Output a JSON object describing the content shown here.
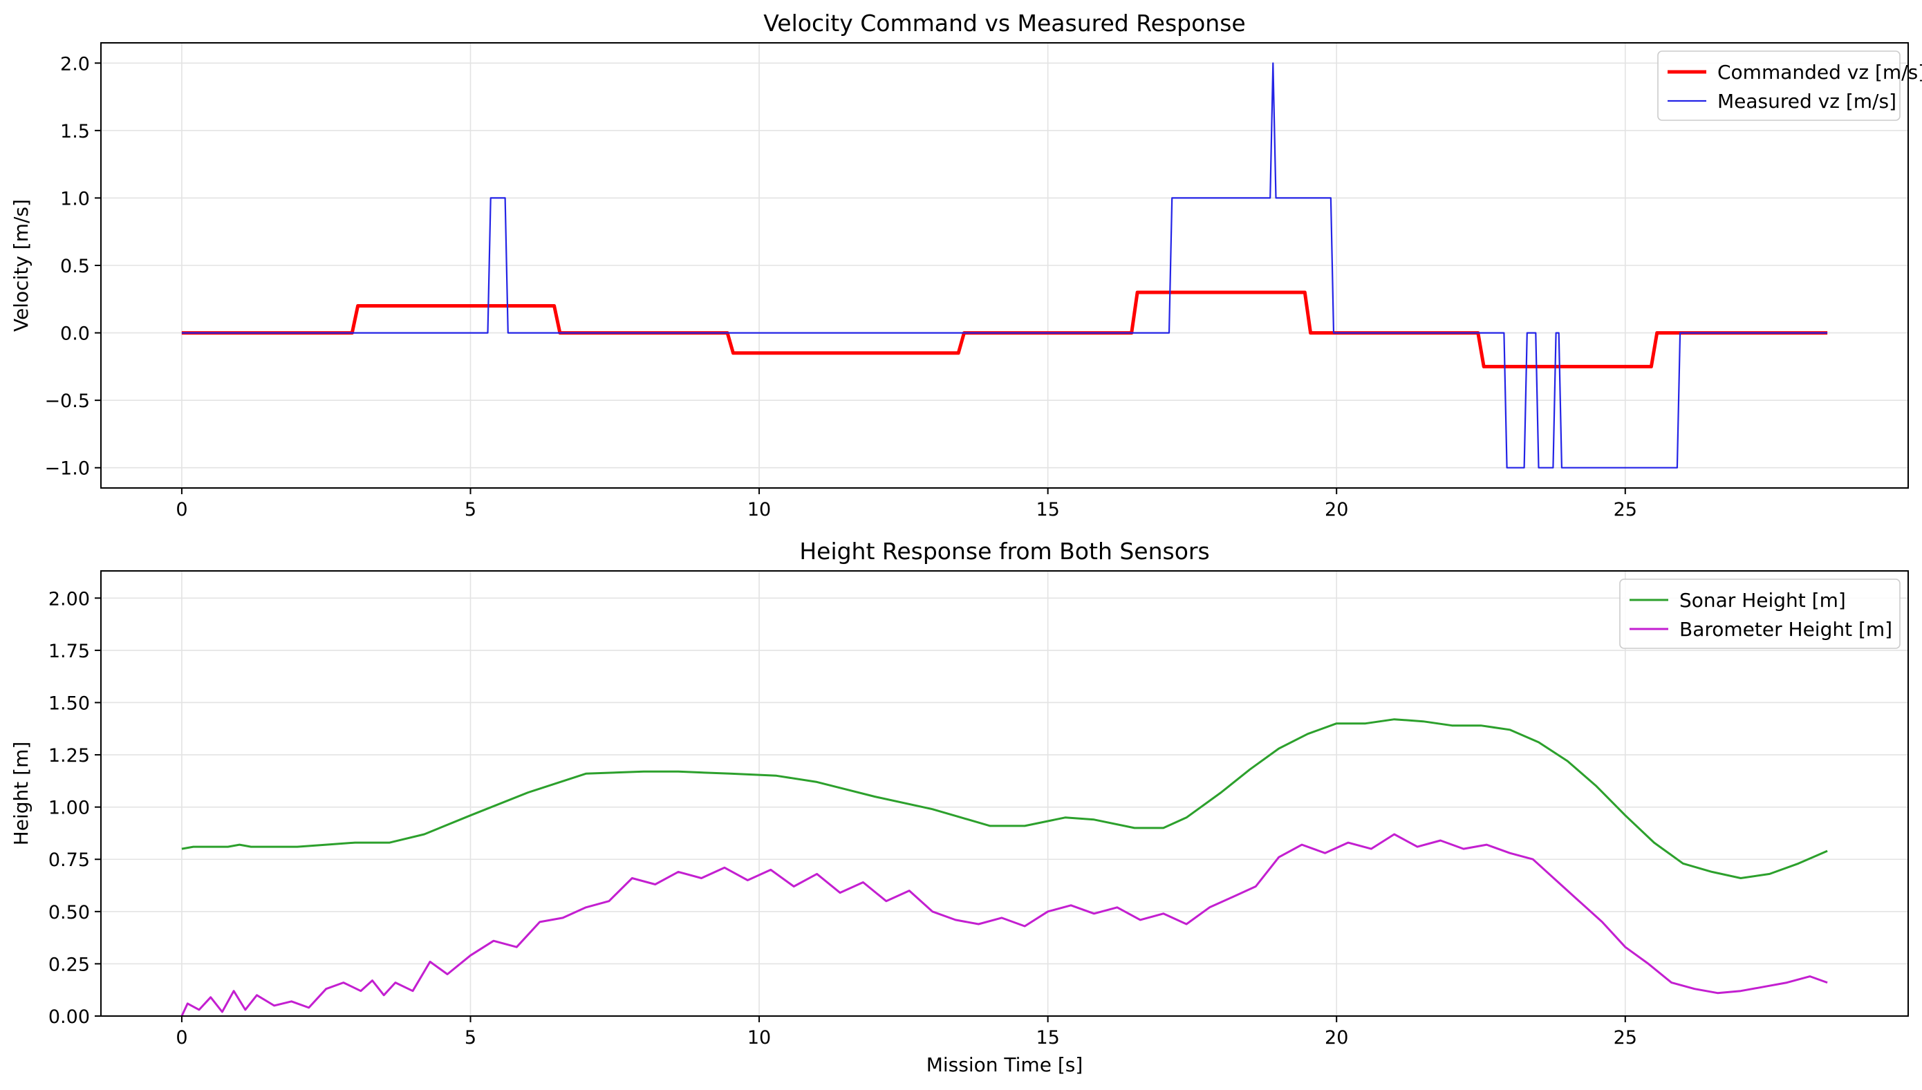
{
  "chart_data": [
    {
      "type": "line",
      "title": "Velocity Command vs Measured Response",
      "xlabel": "",
      "ylabel": "Velocity [m/s]",
      "xlim": [
        -1.4,
        29.9
      ],
      "ylim": [
        -1.15,
        2.15
      ],
      "xticks": [
        0,
        5,
        10,
        15,
        20,
        25
      ],
      "xtick_labels": [
        "0",
        "5",
        "10",
        "15",
        "20",
        "25"
      ],
      "yticks": [
        -1.0,
        -0.5,
        0.0,
        0.5,
        1.0,
        1.5,
        2.0
      ],
      "ytick_labels": [
        "−1.0",
        "−0.5",
        "0.0",
        "0.5",
        "1.0",
        "1.5",
        "2.0"
      ],
      "grid": true,
      "legend_position": "top-right",
      "series": [
        {
          "name": "Commanded vz [m/s]",
          "color": "#ff0000",
          "width": 5,
          "x": [
            0,
            2.95,
            3.05,
            6.45,
            6.55,
            9.45,
            9.55,
            13.45,
            13.55,
            16.45,
            16.55,
            19.45,
            19.55,
            22.45,
            22.55,
            25.45,
            25.55,
            28.5
          ],
          "y": [
            0,
            0,
            0.2,
            0.2,
            0,
            0,
            -0.15,
            -0.15,
            0,
            0,
            0.3,
            0.3,
            0,
            0,
            -0.25,
            -0.25,
            0,
            0
          ]
        },
        {
          "name": "Measured vz [m/s]",
          "color": "#2323e6",
          "width": 2.2,
          "x": [
            0,
            5.3,
            5.35,
            5.6,
            5.65,
            17.1,
            17.15,
            18.85,
            18.9,
            18.95,
            19.9,
            19.95,
            22.9,
            22.95,
            23.25,
            23.3,
            23.45,
            23.5,
            23.75,
            23.8,
            23.85,
            23.9,
            25.9,
            25.95,
            28.5
          ],
          "y": [
            0,
            0,
            1,
            1,
            0,
            0,
            1,
            1,
            2,
            1,
            1,
            0,
            0,
            -1,
            -1,
            0,
            0,
            -1,
            -1,
            0,
            0,
            -1,
            -1,
            0,
            0
          ]
        }
      ]
    },
    {
      "type": "line",
      "title": "Height Response from Both Sensors",
      "xlabel": "Mission Time [s]",
      "ylabel": "Height [m]",
      "xlim": [
        -1.4,
        29.9
      ],
      "ylim": [
        0,
        2.13
      ],
      "xticks": [
        0,
        5,
        10,
        15,
        20,
        25
      ],
      "xtick_labels": [
        "0",
        "5",
        "10",
        "15",
        "20",
        "25"
      ],
      "yticks": [
        0,
        0.25,
        0.5,
        0.75,
        1.0,
        1.25,
        1.5,
        1.75,
        2.0
      ],
      "ytick_labels": [
        "0.00",
        "0.25",
        "0.50",
        "0.75",
        "1.00",
        "1.25",
        "1.50",
        "1.75",
        "2.00"
      ],
      "grid": true,
      "legend_position": "top-right",
      "series": [
        {
          "name": "Sonar Height [m]",
          "color": "#2ca02c",
          "width": 3,
          "x": [
            0,
            0.2,
            0.8,
            1.0,
            1.2,
            2.0,
            2.5,
            3.0,
            3.6,
            4.2,
            5.0,
            6.0,
            7.0,
            8.0,
            8.6,
            9.5,
            10.3,
            11.0,
            12.0,
            13.0,
            13.5,
            14.0,
            14.6,
            15.3,
            15.8,
            16.5,
            17.0,
            17.4,
            18.0,
            18.5,
            19.0,
            19.5,
            20.0,
            20.5,
            21.0,
            21.5,
            22.0,
            22.5,
            23.0,
            23.5,
            24.0,
            24.5,
            25.0,
            25.5,
            26.0,
            26.5,
            27.0,
            27.5,
            28.0,
            28.5
          ],
          "y": [
            0.8,
            0.81,
            0.81,
            0.82,
            0.81,
            0.81,
            0.82,
            0.83,
            0.83,
            0.87,
            0.96,
            1.07,
            1.16,
            1.17,
            1.17,
            1.16,
            1.15,
            1.12,
            1.05,
            0.99,
            0.95,
            0.91,
            0.91,
            0.95,
            0.94,
            0.9,
            0.9,
            0.95,
            1.07,
            1.18,
            1.28,
            1.35,
            1.4,
            1.4,
            1.42,
            1.41,
            1.39,
            1.39,
            1.37,
            1.31,
            1.22,
            1.1,
            0.96,
            0.83,
            0.73,
            0.69,
            0.66,
            0.68,
            0.73,
            0.79
          ]
        },
        {
          "name": "Barometer Height [m]",
          "color": "#c31fd0",
          "width": 3,
          "x": [
            0,
            0.1,
            0.3,
            0.5,
            0.7,
            0.9,
            1.1,
            1.3,
            1.6,
            1.9,
            2.2,
            2.5,
            2.8,
            3.1,
            3.3,
            3.5,
            3.7,
            4.0,
            4.3,
            4.6,
            5.0,
            5.4,
            5.8,
            6.2,
            6.6,
            7.0,
            7.4,
            7.8,
            8.2,
            8.6,
            9.0,
            9.4,
            9.8,
            10.2,
            10.6,
            11.0,
            11.4,
            11.8,
            12.2,
            12.6,
            13.0,
            13.4,
            13.8,
            14.2,
            14.6,
            15.0,
            15.4,
            15.8,
            16.2,
            16.6,
            17.0,
            17.4,
            17.8,
            18.2,
            18.6,
            19.0,
            19.4,
            19.8,
            20.2,
            20.6,
            21.0,
            21.4,
            21.8,
            22.2,
            22.6,
            23.0,
            23.4,
            23.8,
            24.2,
            24.6,
            25.0,
            25.4,
            25.8,
            26.2,
            26.6,
            27.0,
            27.4,
            27.8,
            28.2,
            28.5
          ],
          "y": [
            0.0,
            0.06,
            0.03,
            0.09,
            0.02,
            0.12,
            0.03,
            0.1,
            0.05,
            0.07,
            0.04,
            0.13,
            0.16,
            0.12,
            0.17,
            0.1,
            0.16,
            0.12,
            0.26,
            0.2,
            0.29,
            0.36,
            0.33,
            0.45,
            0.47,
            0.52,
            0.55,
            0.66,
            0.63,
            0.69,
            0.66,
            0.71,
            0.65,
            0.7,
            0.62,
            0.68,
            0.59,
            0.64,
            0.55,
            0.6,
            0.5,
            0.46,
            0.44,
            0.47,
            0.43,
            0.5,
            0.53,
            0.49,
            0.52,
            0.46,
            0.49,
            0.44,
            0.52,
            0.57,
            0.62,
            0.76,
            0.82,
            0.78,
            0.83,
            0.8,
            0.87,
            0.81,
            0.84,
            0.8,
            0.82,
            0.78,
            0.75,
            0.65,
            0.55,
            0.45,
            0.33,
            0.25,
            0.16,
            0.13,
            0.11,
            0.12,
            0.14,
            0.16,
            0.19,
            0.16
          ]
        }
      ]
    }
  ]
}
